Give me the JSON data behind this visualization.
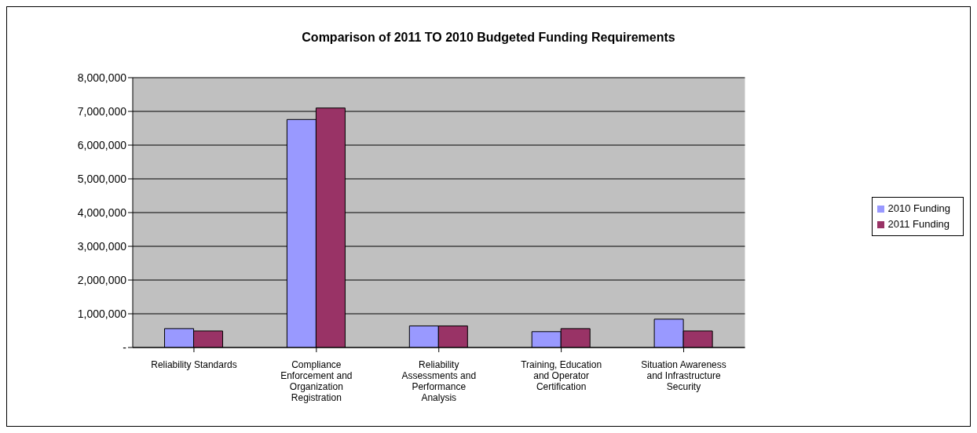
{
  "chart_data": {
    "type": "bar",
    "title": "Comparison of 2011 TO 2010 Budgeted Funding Requirements",
    "categories": [
      "Reliability Standards",
      "Compliance Enforcement and Organization Registration",
      "Reliability Assessments and Performance Analysis",
      "Training, Education and Operator Certification",
      "Situation Awareness and Infrastructure Security"
    ],
    "series": [
      {
        "name": "2010 Funding",
        "color": "#9999ff",
        "values": [
          560000,
          6760000,
          640000,
          470000,
          840000
        ]
      },
      {
        "name": "2011 Funding",
        "color": "#993366",
        "values": [
          490000,
          7100000,
          640000,
          560000,
          490000
        ]
      }
    ],
    "ylim": [
      0,
      8000000
    ],
    "yticks": [
      {
        "value": 0,
        "label": "-"
      },
      {
        "value": 1000000,
        "label": "1,000,000"
      },
      {
        "value": 2000000,
        "label": "2,000,000"
      },
      {
        "value": 3000000,
        "label": "3,000,000"
      },
      {
        "value": 4000000,
        "label": "4,000,000"
      },
      {
        "value": 5000000,
        "label": "5,000,000"
      },
      {
        "value": 6000000,
        "label": "6,000,000"
      },
      {
        "value": 7000000,
        "label": "7,000,000"
      },
      {
        "value": 8000000,
        "label": "8,000,000"
      }
    ],
    "grid": "y",
    "legend": "right"
  }
}
